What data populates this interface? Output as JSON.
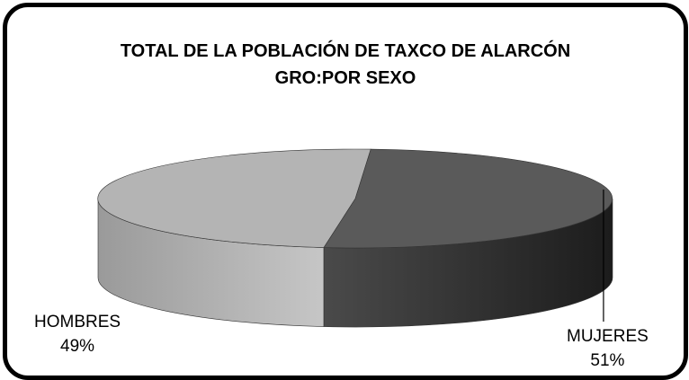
{
  "chart_data": {
    "type": "pie",
    "title_line1": "TOTAL DE LA POBLACIÓN DE TAXCO DE ALARCÓN",
    "title_line2": "GRO:POR  SEXO",
    "slices": [
      {
        "label": "MUJERES",
        "value": 51,
        "value_label": "51%",
        "color": "#5a5a5a"
      },
      {
        "label": "HOMBRES",
        "value": 49,
        "value_label": "49%",
        "color": "#b4b4b4"
      }
    ],
    "style": "3d-pie",
    "legend": "none"
  }
}
